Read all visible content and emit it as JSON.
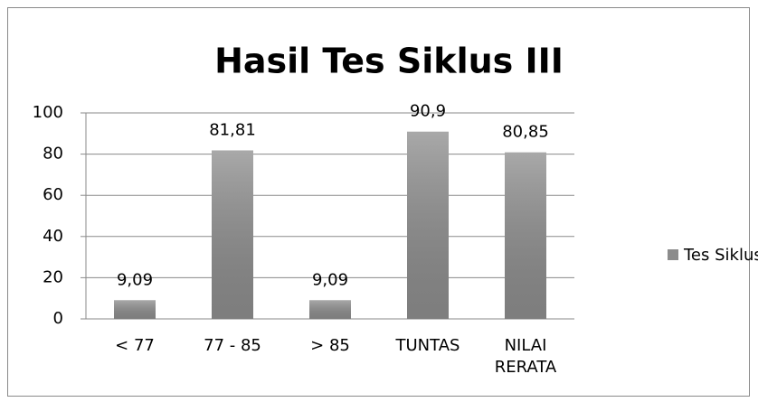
{
  "chart_data": {
    "type": "bar",
    "title": "Hasil Tes Siklus III",
    "categories": [
      "< 77",
      "77 - 85",
      "> 85",
      "TUNTAS",
      "NILAI RERATA"
    ],
    "series": [
      {
        "name": "Tes Siklus II",
        "color": "#8c8c8c",
        "values": [
          9.09,
          81.81,
          9.09,
          90.9,
          80.85
        ],
        "value_labels": [
          "9,09",
          "81,81",
          "9,09",
          "90,9",
          "80,85"
        ]
      }
    ],
    "ylim": [
      0,
      100
    ],
    "yticks": [
      0,
      20,
      40,
      60,
      80,
      100
    ],
    "grid": true,
    "legend": "right"
  }
}
